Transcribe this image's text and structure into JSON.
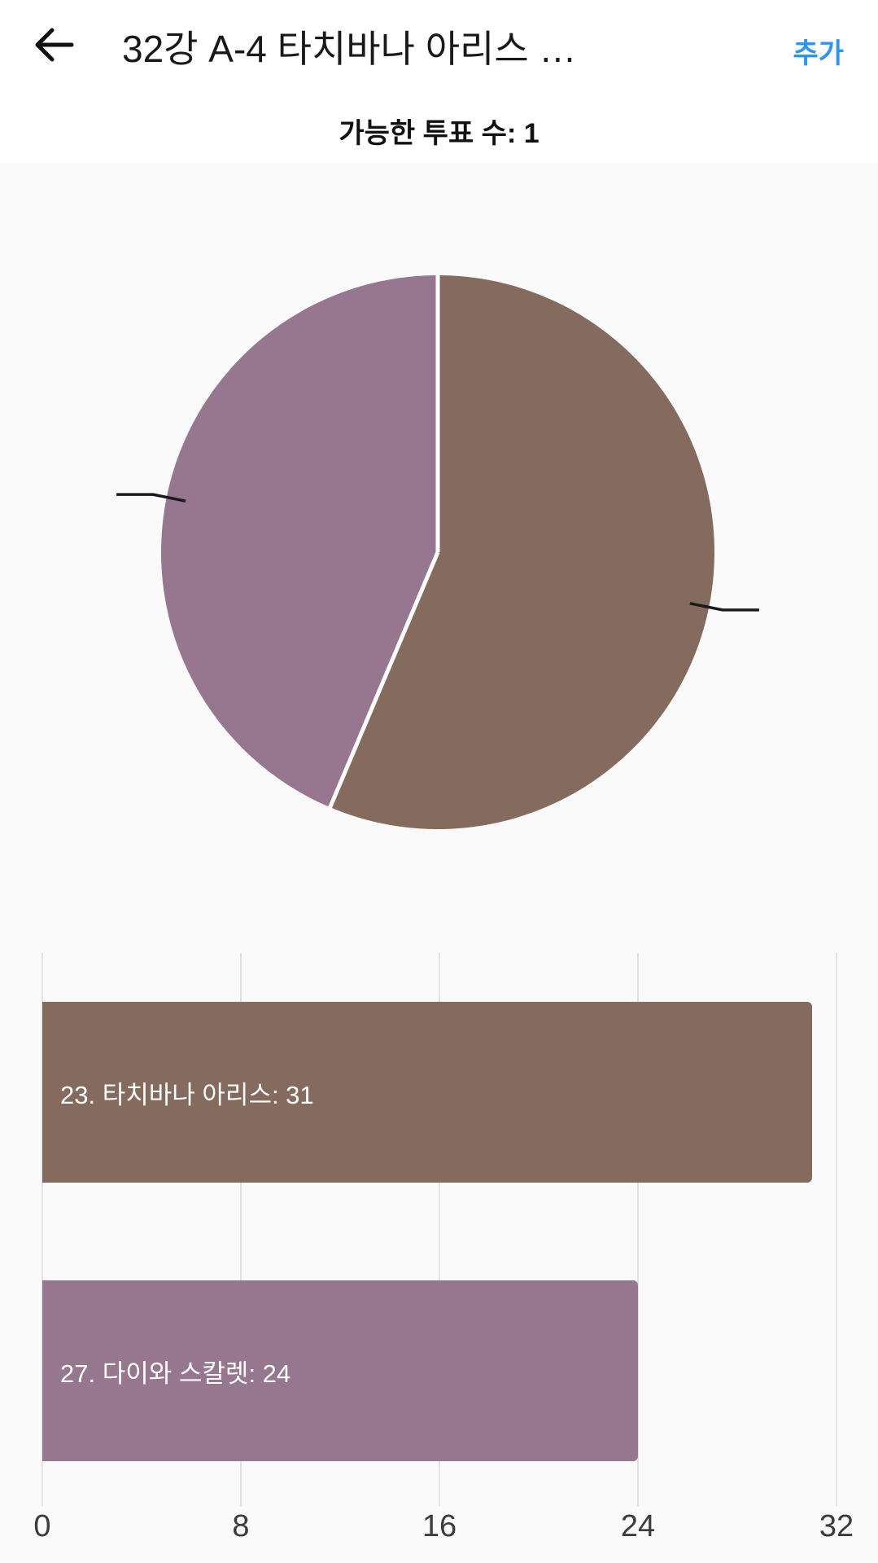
{
  "header": {
    "title": "32강 A-4 타치바나 아리스 …",
    "add_label": "추가",
    "add_color": "#2B95F2"
  },
  "vote_info": "가능한 투표 수: 1",
  "colors": {
    "background": "#FAFAFA",
    "header_background": "#FFFFFF",
    "title_text": "#191919",
    "gridline": "#E3E3E3",
    "callout_line": "#1A1A1A",
    "bar_label_text": "#FFFFFF",
    "axis_text": "#3C3C3C",
    "back_icon": "#111111"
  },
  "chart_data": [
    {
      "type": "pie",
      "series": [
        {
          "name": "23. 타치바나 아리스",
          "value": 31,
          "color": "#856A5E"
        },
        {
          "name": "27. 다이와 스칼렛",
          "value": 24,
          "color": "#97778F"
        }
      ],
      "start_angle": "top",
      "direction": "clockwise",
      "slice_divider_color": "#FFFFFF",
      "callout_lines": true,
      "legend_position": "none"
    },
    {
      "type": "bar",
      "orientation": "horizontal",
      "categories": [
        "23. 타치바나 아리스",
        "27. 다이와 스칼렛"
      ],
      "values": [
        31,
        24
      ],
      "bar_labels": [
        "23. 타치바나 아리스: 31",
        "27. 다이와 스칼렛: 24"
      ],
      "bar_colors": [
        "#856A5E",
        "#97778F"
      ],
      "xlim": [
        0,
        32
      ],
      "xticks": [
        0,
        8,
        16,
        24,
        32
      ],
      "grid": "vertical",
      "legend_position": "none"
    }
  ]
}
